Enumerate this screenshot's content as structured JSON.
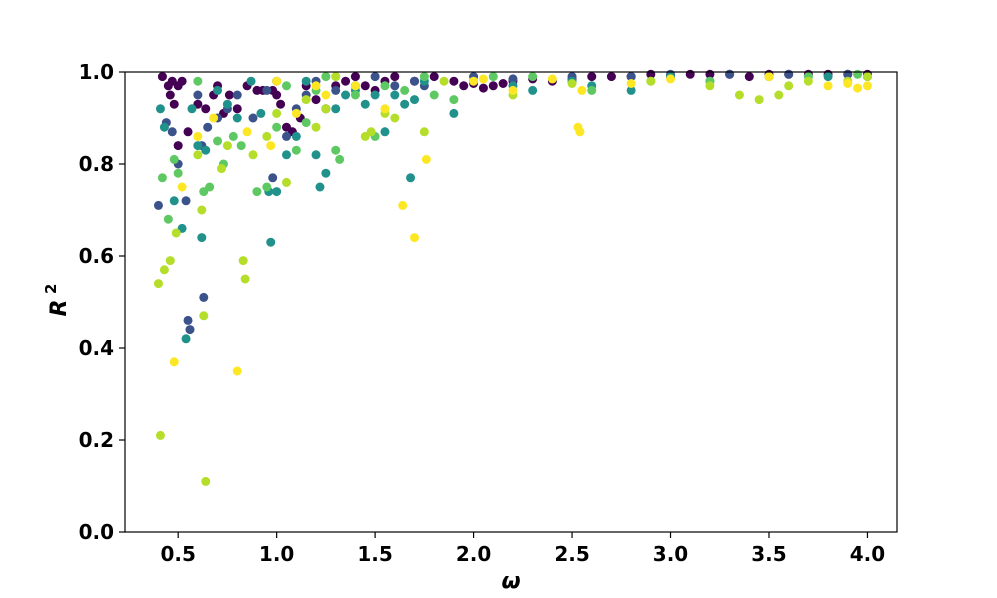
{
  "chart_data": {
    "type": "scatter",
    "xlabel": "ω",
    "ylabel": "R",
    "ylabel_superscript": "2",
    "xlim": [
      0.23,
      4.15
    ],
    "ylim": [
      0.0,
      1.0
    ],
    "x_ticks": [
      "0.5",
      "1.0",
      "1.5",
      "2.0",
      "2.5",
      "3.0",
      "3.5",
      "4.0"
    ],
    "x_tick_values": [
      0.5,
      1.0,
      1.5,
      2.0,
      2.5,
      3.0,
      3.5,
      4.0
    ],
    "y_ticks": [
      "0.0",
      "0.2",
      "0.4",
      "0.6",
      "0.8",
      "1.0"
    ],
    "y_tick_values": [
      0.0,
      0.2,
      0.4,
      0.6,
      0.8,
      1.0
    ],
    "grid": false,
    "legend": "none",
    "colormap": "viridis",
    "palette": [
      "#440154",
      "#3b528b",
      "#21918c",
      "#5ec962",
      "#b5de2b",
      "#fde725"
    ],
    "series": [
      {
        "color": "#440154",
        "points": [
          [
            0.42,
            0.99
          ],
          [
            0.45,
            0.97
          ],
          [
            0.47,
            0.98
          ],
          [
            0.5,
            0.97
          ],
          [
            0.52,
            0.98
          ],
          [
            0.46,
            0.95
          ],
          [
            0.48,
            0.93
          ],
          [
            0.6,
            0.93
          ],
          [
            0.64,
            0.92
          ],
          [
            0.68,
            0.95
          ],
          [
            0.7,
            0.97
          ],
          [
            0.73,
            0.91
          ],
          [
            0.76,
            0.95
          ],
          [
            0.8,
            0.92
          ],
          [
            0.85,
            0.97
          ],
          [
            0.9,
            0.96
          ],
          [
            0.93,
            0.96
          ],
          [
            0.98,
            0.96
          ],
          [
            1.0,
            0.95
          ],
          [
            1.02,
            0.93
          ],
          [
            1.05,
            0.88
          ],
          [
            1.08,
            0.87
          ],
          [
            1.12,
            0.9
          ],
          [
            1.15,
            0.97
          ],
          [
            1.2,
            0.94
          ],
          [
            1.25,
            0.92
          ],
          [
            1.3,
            0.97
          ],
          [
            1.35,
            0.98
          ],
          [
            1.4,
            0.99
          ],
          [
            1.45,
            0.97
          ],
          [
            1.5,
            0.96
          ],
          [
            1.55,
            0.98
          ],
          [
            1.6,
            0.99
          ],
          [
            1.7,
            0.98
          ],
          [
            1.8,
            0.99
          ],
          [
            1.9,
            0.98
          ],
          [
            1.95,
            0.97
          ],
          [
            2.0,
            0.975
          ],
          [
            2.05,
            0.965
          ],
          [
            2.1,
            0.97
          ],
          [
            2.15,
            0.975
          ],
          [
            2.2,
            0.98
          ],
          [
            2.3,
            0.985
          ],
          [
            2.4,
            0.98
          ],
          [
            2.5,
            0.985
          ],
          [
            2.6,
            0.99
          ],
          [
            2.7,
            0.99
          ],
          [
            2.8,
            0.99
          ],
          [
            2.9,
            0.995
          ],
          [
            3.0,
            0.99
          ],
          [
            3.1,
            0.995
          ],
          [
            3.2,
            0.995
          ],
          [
            3.3,
            0.995
          ],
          [
            3.4,
            0.99
          ],
          [
            3.5,
            0.995
          ],
          [
            3.6,
            0.995
          ],
          [
            3.7,
            0.995
          ],
          [
            3.8,
            0.995
          ],
          [
            3.9,
            0.995
          ],
          [
            4.0,
            0.995
          ],
          [
            0.5,
            0.84
          ],
          [
            0.55,
            0.87
          ]
        ]
      },
      {
        "color": "#3b528b",
        "points": [
          [
            0.4,
            0.71
          ],
          [
            0.44,
            0.89
          ],
          [
            0.47,
            0.87
          ],
          [
            0.5,
            0.8
          ],
          [
            0.54,
            0.72
          ],
          [
            0.55,
            0.46
          ],
          [
            0.56,
            0.44
          ],
          [
            0.6,
            0.95
          ],
          [
            0.62,
            0.84
          ],
          [
            0.65,
            0.88
          ],
          [
            0.7,
            0.9
          ],
          [
            0.75,
            0.92
          ],
          [
            0.8,
            0.95
          ],
          [
            0.88,
            0.9
          ],
          [
            0.95,
            0.96
          ],
          [
            0.98,
            0.77
          ],
          [
            1.0,
            0.98
          ],
          [
            1.05,
            0.86
          ],
          [
            1.1,
            0.92
          ],
          [
            1.15,
            0.95
          ],
          [
            1.2,
            0.98
          ],
          [
            1.3,
            0.96
          ],
          [
            1.4,
            0.97
          ],
          [
            1.5,
            0.99
          ],
          [
            1.6,
            0.97
          ],
          [
            1.7,
            0.98
          ],
          [
            1.75,
            0.97
          ],
          [
            2.0,
            0.99
          ],
          [
            2.2,
            0.985
          ],
          [
            2.5,
            0.99
          ],
          [
            2.8,
            0.99
          ],
          [
            3.0,
            0.995
          ],
          [
            3.3,
            0.995
          ],
          [
            3.6,
            0.995
          ],
          [
            3.9,
            0.995
          ],
          [
            0.63,
            0.51
          ]
        ]
      },
      {
        "color": "#21918c",
        "points": [
          [
            0.41,
            0.92
          ],
          [
            0.43,
            0.88
          ],
          [
            0.48,
            0.72
          ],
          [
            0.52,
            0.66
          ],
          [
            0.54,
            0.42
          ],
          [
            0.57,
            0.92
          ],
          [
            0.6,
            0.84
          ],
          [
            0.62,
            0.64
          ],
          [
            0.64,
            0.83
          ],
          [
            0.7,
            0.96
          ],
          [
            0.75,
            0.93
          ],
          [
            0.8,
            0.9
          ],
          [
            0.87,
            0.98
          ],
          [
            0.92,
            0.91
          ],
          [
            0.96,
            0.74
          ],
          [
            0.97,
            0.63
          ],
          [
            1.0,
            0.74
          ],
          [
            1.05,
            0.82
          ],
          [
            1.1,
            0.86
          ],
          [
            1.15,
            0.98
          ],
          [
            1.2,
            0.82
          ],
          [
            1.22,
            0.75
          ],
          [
            1.25,
            0.78
          ],
          [
            1.3,
            0.92
          ],
          [
            1.35,
            0.95
          ],
          [
            1.4,
            0.96
          ],
          [
            1.45,
            0.93
          ],
          [
            1.5,
            0.95
          ],
          [
            1.55,
            0.87
          ],
          [
            1.6,
            0.95
          ],
          [
            1.65,
            0.93
          ],
          [
            1.68,
            0.77
          ],
          [
            1.7,
            0.94
          ],
          [
            1.75,
            0.98
          ],
          [
            1.9,
            0.91
          ],
          [
            2.0,
            0.98
          ],
          [
            2.2,
            0.97
          ],
          [
            2.3,
            0.96
          ],
          [
            2.5,
            0.98
          ],
          [
            2.6,
            0.97
          ],
          [
            2.8,
            0.96
          ],
          [
            3.0,
            0.99
          ],
          [
            3.2,
            0.98
          ],
          [
            3.5,
            0.99
          ],
          [
            3.8,
            0.99
          ],
          [
            4.0,
            0.99
          ]
        ]
      },
      {
        "color": "#5ec962",
        "points": [
          [
            0.42,
            0.77
          ],
          [
            0.45,
            0.68
          ],
          [
            0.48,
            0.81
          ],
          [
            0.5,
            0.78
          ],
          [
            0.6,
            0.98
          ],
          [
            0.63,
            0.74
          ],
          [
            0.66,
            0.75
          ],
          [
            0.7,
            0.85
          ],
          [
            0.73,
            0.8
          ],
          [
            0.78,
            0.86
          ],
          [
            0.82,
            0.84
          ],
          [
            0.9,
            0.74
          ],
          [
            0.95,
            0.75
          ],
          [
            1.0,
            0.88
          ],
          [
            1.05,
            0.97
          ],
          [
            1.1,
            0.83
          ],
          [
            1.15,
            0.89
          ],
          [
            1.2,
            0.96
          ],
          [
            1.25,
            0.99
          ],
          [
            1.3,
            0.83
          ],
          [
            1.32,
            0.81
          ],
          [
            1.4,
            0.95
          ],
          [
            1.5,
            0.86
          ],
          [
            1.55,
            0.97
          ],
          [
            1.65,
            0.96
          ],
          [
            1.75,
            0.99
          ],
          [
            1.8,
            0.95
          ],
          [
            1.9,
            0.94
          ],
          [
            2.1,
            0.99
          ],
          [
            2.3,
            0.99
          ],
          [
            2.6,
            0.96
          ],
          [
            2.9,
            0.98
          ],
          [
            3.2,
            0.98
          ],
          [
            3.5,
            0.99
          ],
          [
            3.7,
            0.99
          ],
          [
            3.95,
            0.995
          ]
        ]
      },
      {
        "color": "#b5de2b",
        "points": [
          [
            0.4,
            0.54
          ],
          [
            0.41,
            0.21
          ],
          [
            0.43,
            0.57
          ],
          [
            0.46,
            0.59
          ],
          [
            0.49,
            0.65
          ],
          [
            0.6,
            0.82
          ],
          [
            0.62,
            0.7
          ],
          [
            0.63,
            0.47
          ],
          [
            0.64,
            0.11
          ],
          [
            0.72,
            0.79
          ],
          [
            0.75,
            0.84
          ],
          [
            0.83,
            0.59
          ],
          [
            0.84,
            0.55
          ],
          [
            0.88,
            0.82
          ],
          [
            0.95,
            0.86
          ],
          [
            1.0,
            0.91
          ],
          [
            1.05,
            0.76
          ],
          [
            1.15,
            0.94
          ],
          [
            1.2,
            0.88
          ],
          [
            1.25,
            0.92
          ],
          [
            1.3,
            0.99
          ],
          [
            1.45,
            0.86
          ],
          [
            1.48,
            0.87
          ],
          [
            1.55,
            0.91
          ],
          [
            1.6,
            0.9
          ],
          [
            1.75,
            0.87
          ],
          [
            1.85,
            0.98
          ],
          [
            2.2,
            0.95
          ],
          [
            2.5,
            0.975
          ],
          [
            2.9,
            0.98
          ],
          [
            3.2,
            0.97
          ],
          [
            3.35,
            0.95
          ],
          [
            3.45,
            0.94
          ],
          [
            3.55,
            0.95
          ],
          [
            3.6,
            0.97
          ],
          [
            3.7,
            0.98
          ],
          [
            3.9,
            0.98
          ],
          [
            4.0,
            0.99
          ]
        ]
      },
      {
        "color": "#fde725",
        "points": [
          [
            0.48,
            0.37
          ],
          [
            0.52,
            0.75
          ],
          [
            0.6,
            0.86
          ],
          [
            0.68,
            0.9
          ],
          [
            0.8,
            0.35
          ],
          [
            0.85,
            0.87
          ],
          [
            0.97,
            0.84
          ],
          [
            1.0,
            0.98
          ],
          [
            1.1,
            0.91
          ],
          [
            1.2,
            0.97
          ],
          [
            1.25,
            0.95
          ],
          [
            1.4,
            0.97
          ],
          [
            1.55,
            0.92
          ],
          [
            1.64,
            0.71
          ],
          [
            1.7,
            0.64
          ],
          [
            1.76,
            0.81
          ],
          [
            2.0,
            0.98
          ],
          [
            2.05,
            0.985
          ],
          [
            2.2,
            0.96
          ],
          [
            2.4,
            0.985
          ],
          [
            2.53,
            0.88
          ],
          [
            2.54,
            0.87
          ],
          [
            2.55,
            0.96
          ],
          [
            2.8,
            0.975
          ],
          [
            3.0,
            0.985
          ],
          [
            3.5,
            0.99
          ],
          [
            3.8,
            0.97
          ],
          [
            3.9,
            0.975
          ],
          [
            3.95,
            0.965
          ],
          [
            4.0,
            0.97
          ]
        ]
      }
    ]
  }
}
